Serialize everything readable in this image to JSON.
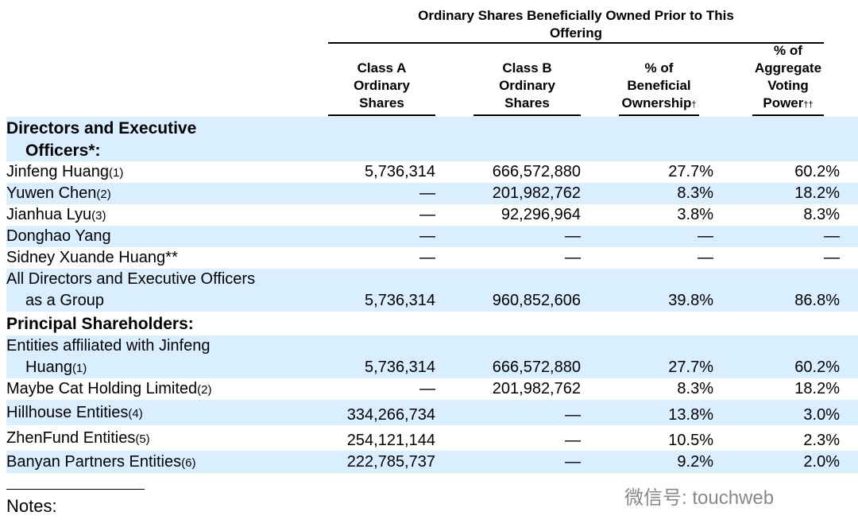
{
  "header": {
    "group": "Ordinary Shares Beneficially Owned Prior to This Offering",
    "columns": [
      {
        "lines": [
          "Class A",
          "Ordinary",
          "Shares"
        ]
      },
      {
        "lines": [
          "Class B",
          "Ordinary",
          "Shares"
        ]
      },
      {
        "lines": [
          "% of",
          "Beneficial",
          "Ownership"
        ],
        "mark": "†"
      },
      {
        "lines": [
          "% of",
          "Aggregate",
          "Voting",
          "Power"
        ],
        "mark": "††"
      }
    ]
  },
  "table": {
    "rows": [
      {
        "label": [
          "Directors and Executive",
          "Officers*:"
        ],
        "bold": true
      },
      {
        "label": [
          "Jinfeng Huang"
        ],
        "note": "(1)",
        "cells": [
          "5,736,314",
          "666,572,880",
          "27.7%",
          "60.2%"
        ]
      },
      {
        "label": [
          "Yuwen Chen"
        ],
        "note": "(2)",
        "cells": [
          "—",
          "201,982,762",
          "8.3%",
          "18.2%"
        ]
      },
      {
        "label": [
          "Jianhua Lyu"
        ],
        "note": "(3)",
        "cells": [
          "—",
          "92,296,964",
          "3.8%",
          "8.3%"
        ]
      },
      {
        "label": [
          "Donghao Yang"
        ],
        "cells": [
          "—",
          "—",
          "—",
          "—"
        ]
      },
      {
        "label": [
          "Sidney Xuande Huang**"
        ],
        "cells": [
          "—",
          "—",
          "—",
          "—"
        ]
      },
      {
        "label": [
          "All Directors and Executive Officers",
          "as a Group"
        ],
        "cells": [
          "5,736,314",
          "960,852,606",
          "39.8%",
          "86.8%"
        ]
      },
      {
        "label": [
          "Principal Shareholders:"
        ],
        "bold": true
      },
      {
        "label": [
          "Entities affiliated with Jinfeng",
          "Huang"
        ],
        "note": "(1)",
        "cells": [
          "5,736,314",
          "666,572,880",
          "27.7%",
          "60.2%"
        ]
      },
      {
        "label": [
          "Maybe Cat Holding Limited"
        ],
        "note": "(2)",
        "cells": [
          "—",
          "201,982,762",
          "8.3%",
          "18.2%"
        ]
      },
      {
        "label": [
          "Hillhouse Entities"
        ],
        "note": "(4)",
        "cells": [
          "334,266,734",
          "—",
          "13.8%",
          "3.0%"
        ]
      },
      {
        "label": [
          "ZhenFund Entities"
        ],
        "note": "(5)",
        "cells": [
          "254,121,144",
          "—",
          "10.5%",
          "2.3%"
        ]
      },
      {
        "label": [
          "Banyan Partners Entities"
        ],
        "note": "(6)",
        "cells": [
          "222,785,737",
          "—",
          "9.2%",
          "2.0%"
        ]
      }
    ]
  },
  "footer": {
    "notes": "Notes:",
    "watermark": "微信号: touchweb"
  }
}
